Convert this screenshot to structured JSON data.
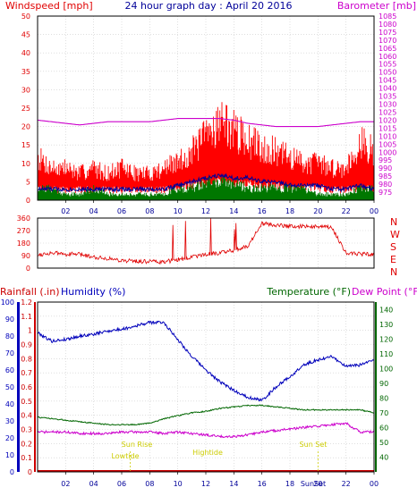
{
  "title": "24 hour graph day : April 20 2016",
  "colors": {
    "wind": "#e00000",
    "gust": "#ff0000",
    "avgwind": "#000099",
    "green": "#007700",
    "baro": "#cc00cc",
    "humidity": "#0000bb",
    "temp": "#006600",
    "dew": "#cc00cc",
    "rain": "#cc0000",
    "sun": "#cccc00",
    "grid": "#cccccc",
    "frame": "#000000"
  },
  "hour_ticks": [
    "02",
    "04",
    "06",
    "08",
    "10",
    "12",
    "14",
    "16",
    "18",
    "20",
    "22",
    "00"
  ],
  "events": {
    "sunrise": "Sun Rise",
    "sunset": "Sun Set",
    "lowtide": "Lowtide",
    "hightide": "Hightide",
    "sunset_axis": "SunSet"
  },
  "chart_data": [
    {
      "type": "line",
      "title": "24 hour graph day : April 20 2016",
      "ylabel": "Windspeed [mph]",
      "ylabel_right": "Barometer [mb]",
      "ylim": [
        0,
        50
      ],
      "ylim_right": [
        970,
        1085
      ],
      "y_ticks": [
        "0",
        "5",
        "10",
        "15",
        "20",
        "25",
        "30",
        "35",
        "40",
        "45",
        "50"
      ],
      "y_ticks_right": [
        "975",
        "980",
        "985",
        "990",
        "995",
        "1000",
        "1005",
        "1010",
        "1015",
        "1020",
        "1025",
        "1030",
        "1035",
        "1040",
        "1045",
        "1050",
        "1055",
        "1060",
        "1065",
        "1070",
        "1075",
        "1080",
        "1085"
      ],
      "x": [
        0,
        1,
        2,
        3,
        4,
        5,
        6,
        7,
        8,
        9,
        10,
        11,
        12,
        13,
        14,
        15,
        16,
        17,
        18,
        19,
        20,
        21,
        22,
        23,
        24
      ],
      "series": [
        {
          "key": "gust",
          "values": [
            8,
            6,
            6,
            5,
            6,
            5,
            6,
            5,
            5,
            6,
            7,
            9,
            12,
            15,
            13,
            11,
            10,
            9,
            8,
            7,
            7,
            6,
            6,
            11,
            9
          ]
        },
        {
          "key": "avgwind",
          "values": [
            3,
            3,
            3,
            3,
            3,
            3,
            3,
            3,
            3,
            3,
            4,
            5,
            6,
            7,
            6,
            6,
            5,
            5,
            4,
            4,
            4,
            3,
            3,
            4,
            3
          ]
        },
        {
          "key": "green",
          "values": [
            2,
            2,
            1,
            1,
            2,
            1,
            1,
            1,
            1,
            1,
            2,
            2,
            3,
            3,
            3,
            2,
            2,
            2,
            2,
            2,
            1,
            1,
            1,
            2,
            2
          ]
        },
        {
          "key": "baro",
          "values": [
            1020,
            1019,
            1018,
            1017,
            1018,
            1019,
            1019,
            1019,
            1019,
            1020,
            1021,
            1021,
            1021,
            1021,
            1020,
            1018,
            1017,
            1016,
            1016,
            1016,
            1016,
            1017,
            1018,
            1019,
            1019
          ]
        }
      ]
    },
    {
      "type": "line",
      "ylabel_right": "Wind direction",
      "ylim": [
        0,
        360
      ],
      "y_ticks": [
        "0",
        "90",
        "180",
        "270",
        "360"
      ],
      "directions": [
        "N",
        "W",
        "S",
        "E",
        "N"
      ],
      "x": [
        0,
        1,
        2,
        3,
        4,
        5,
        6,
        7,
        8,
        9,
        10,
        11,
        12,
        13,
        14,
        15,
        16,
        17,
        18,
        19,
        20,
        21,
        22,
        23,
        24
      ],
      "series": [
        {
          "key": "direction",
          "values": [
            95,
            110,
            100,
            100,
            80,
            70,
            55,
            50,
            45,
            45,
            60,
            80,
            100,
            110,
            130,
            160,
            320,
            310,
            300,
            300,
            300,
            290,
            110,
            100,
            100
          ]
        }
      ]
    },
    {
      "type": "line",
      "ylabel": "Rainfall (.in)",
      "ylabel2": "Humidity (%)",
      "ylabel_right": "Temperature (°F)",
      "ylabel_right2": "Dew Point (°F)",
      "ylim_humidity": [
        0,
        100
      ],
      "ylim_rain": [
        0,
        1.2
      ],
      "ylim_temp": [
        30,
        145
      ],
      "humidity_ticks": [
        "0",
        "10",
        "20",
        "30",
        "40",
        "50",
        "60",
        "70",
        "80",
        "90",
        "100"
      ],
      "rain_ticks": [
        "0",
        "0.1",
        "0.2",
        "0.3",
        "0.4",
        "0.5",
        "0.6",
        "0.7",
        "0.8",
        "0.9",
        "1",
        "1.1",
        "1.2"
      ],
      "temp_ticks": [
        "40",
        "50",
        "60",
        "70",
        "80",
        "90",
        "100",
        "110",
        "120",
        "130",
        "140"
      ],
      "x": [
        0,
        1,
        2,
        3,
        4,
        5,
        6,
        7,
        8,
        9,
        10,
        11,
        12,
        13,
        14,
        15,
        16,
        17,
        18,
        19,
        20,
        21,
        22,
        23,
        24
      ],
      "series": [
        {
          "key": "humidity",
          "values": [
            82,
            77,
            78,
            80,
            81,
            83,
            84,
            86,
            88,
            88,
            78,
            68,
            60,
            53,
            48,
            44,
            42,
            50,
            56,
            63,
            66,
            68,
            62,
            63,
            66
          ]
        },
        {
          "key": "temp",
          "values": [
            67,
            66,
            65,
            64,
            63,
            62,
            62,
            62,
            63,
            66,
            68,
            70,
            71,
            73,
            74,
            75,
            75,
            74,
            73,
            72,
            72,
            72,
            72,
            72,
            70
          ]
        },
        {
          "key": "dew",
          "values": [
            57,
            57,
            57,
            56,
            56,
            56,
            57,
            57,
            57,
            56,
            57,
            56,
            55,
            54,
            54,
            55,
            57,
            58,
            59,
            60,
            61,
            62,
            63,
            57,
            57
          ]
        },
        {
          "key": "rain",
          "values": [
            0,
            0,
            0,
            0,
            0,
            0,
            0,
            0,
            0,
            0,
            0,
            0,
            0,
            0,
            0,
            0,
            0,
            0,
            0,
            0,
            0,
            0,
            0,
            0,
            0
          ]
        }
      ]
    }
  ]
}
